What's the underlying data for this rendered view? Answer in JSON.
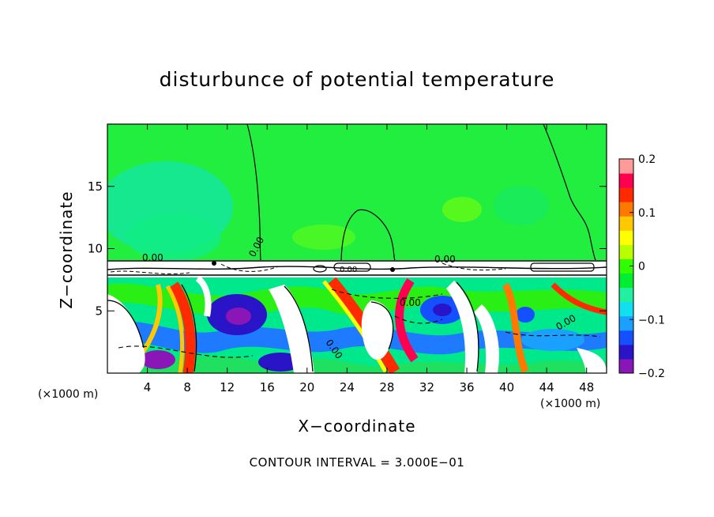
{
  "chart_data": {
    "type": "heatmap",
    "title": "disturbunce of potential temperature",
    "xlabel": "X−coordinate",
    "ylabel": "Z−coordinate",
    "x_unit_label": "(×1000 m)",
    "footnote": "CONTOUR INTERVAL = 3.000E−01",
    "xlim": [
      0,
      50
    ],
    "ylim": [
      0,
      20
    ],
    "x_ticks": [
      4,
      8,
      12,
      16,
      20,
      24,
      28,
      32,
      36,
      40,
      44,
      48
    ],
    "y_ticks": [
      5,
      10,
      15
    ],
    "colorbar": {
      "range": [
        -0.2,
        0.2
      ],
      "tick_values": [
        0.2,
        0.1,
        0,
        -0.1,
        -0.2
      ],
      "tick_labels": [
        "0.2",
        "0.1",
        "0",
        "−0.1",
        "−0.2"
      ],
      "colors": [
        "#8a16b8",
        "#2a14c8",
        "#1450ff",
        "#1aa0ff",
        "#11e0f0",
        "#20f0a0",
        "#00ee30",
        "#30ff00",
        "#b8ff00",
        "#ffff00",
        "#ffc800",
        "#ff7800",
        "#ff2a00",
        "#ff0050",
        "#ff9a9a"
      ]
    },
    "contour_labels": [
      "0.00",
      "0.00",
      "0.00",
      "0.00",
      "0.00",
      "0.00",
      "0.00"
    ],
    "contour_interval": 0.3
  }
}
